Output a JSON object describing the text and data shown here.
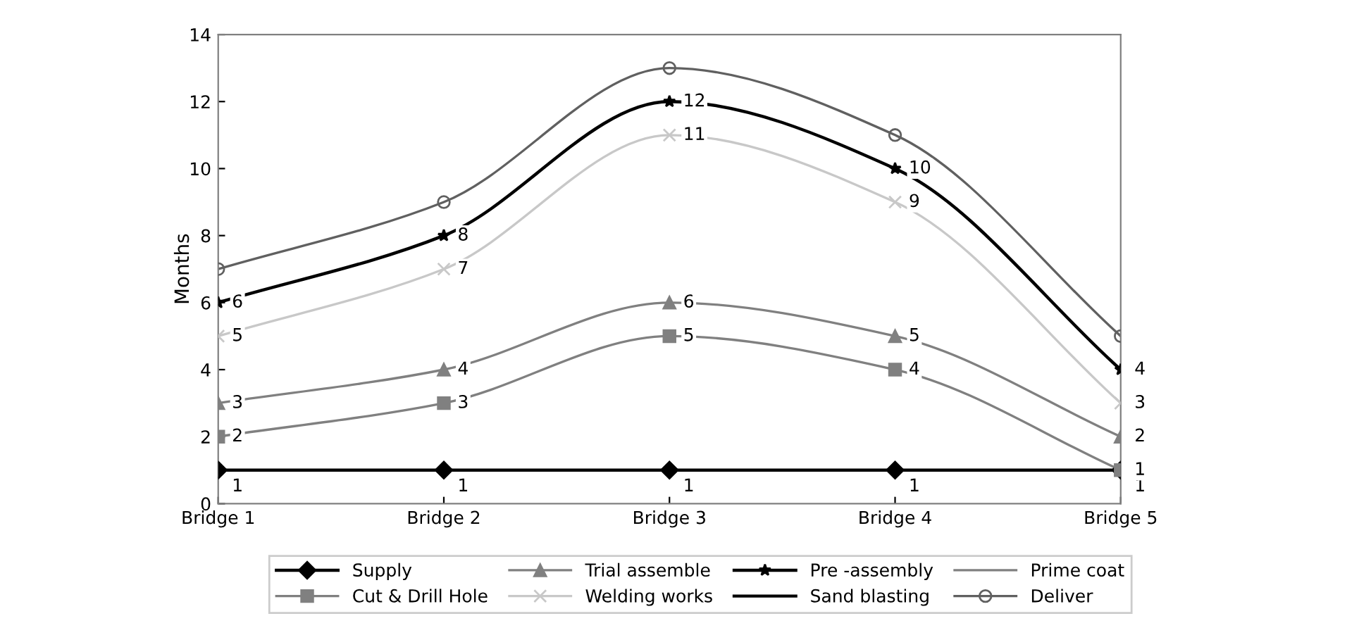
{
  "chart_data": {
    "type": "line",
    "ylabel": "Months",
    "categories": [
      "Bridge 1",
      "Bridge 2",
      "Bridge 3",
      "Bridge 4",
      "Bridge 5"
    ],
    "ylim": [
      0,
      14
    ],
    "yticks": [
      0,
      2,
      4,
      6,
      8,
      10,
      12,
      14
    ],
    "grid": false,
    "legend": "bottom",
    "line_style": "solid",
    "series": [
      {
        "name": "Supply",
        "color": "#000000",
        "marker": "diamond",
        "values": [
          1,
          1,
          1,
          1,
          1
        ],
        "value_labels": [
          "1",
          "1",
          "1",
          "1",
          "1"
        ]
      },
      {
        "name": "Cut & Drill Hole",
        "color": "#808080",
        "marker": "square",
        "values": [
          2,
          3,
          5,
          4,
          1
        ],
        "value_labels": [
          "2",
          "3",
          "5",
          "4",
          "1"
        ]
      },
      {
        "name": "Trial assemble",
        "color": "#808080",
        "marker": "triangle",
        "values": [
          3,
          4,
          6,
          5,
          2
        ],
        "value_labels": [
          "3",
          "4",
          "6",
          "5",
          "2"
        ]
      },
      {
        "name": "Welding works",
        "color": "#c8c8c8",
        "marker": "cross",
        "values": [
          5,
          7,
          11,
          9,
          3
        ],
        "value_labels": [
          "5",
          "7",
          "11",
          "9",
          "3"
        ]
      },
      {
        "name": "Pre -assembly",
        "color": "#000000",
        "marker": "star",
        "values": [
          6,
          8,
          12,
          10,
          4
        ],
        "value_labels": [
          "6",
          "8",
          "12",
          "10",
          "4"
        ]
      },
      {
        "name": "Sand blasting",
        "color": "#000000",
        "marker": "none",
        "values": [
          null,
          null,
          null,
          null,
          null
        ]
      },
      {
        "name": "Prime coat",
        "color": "#808080",
        "marker": "none",
        "values": [
          null,
          null,
          null,
          null,
          null
        ]
      },
      {
        "name": "Deliver",
        "color": "#606060",
        "marker": "circle",
        "values": [
          7,
          9,
          13,
          11,
          5
        ]
      }
    ]
  }
}
